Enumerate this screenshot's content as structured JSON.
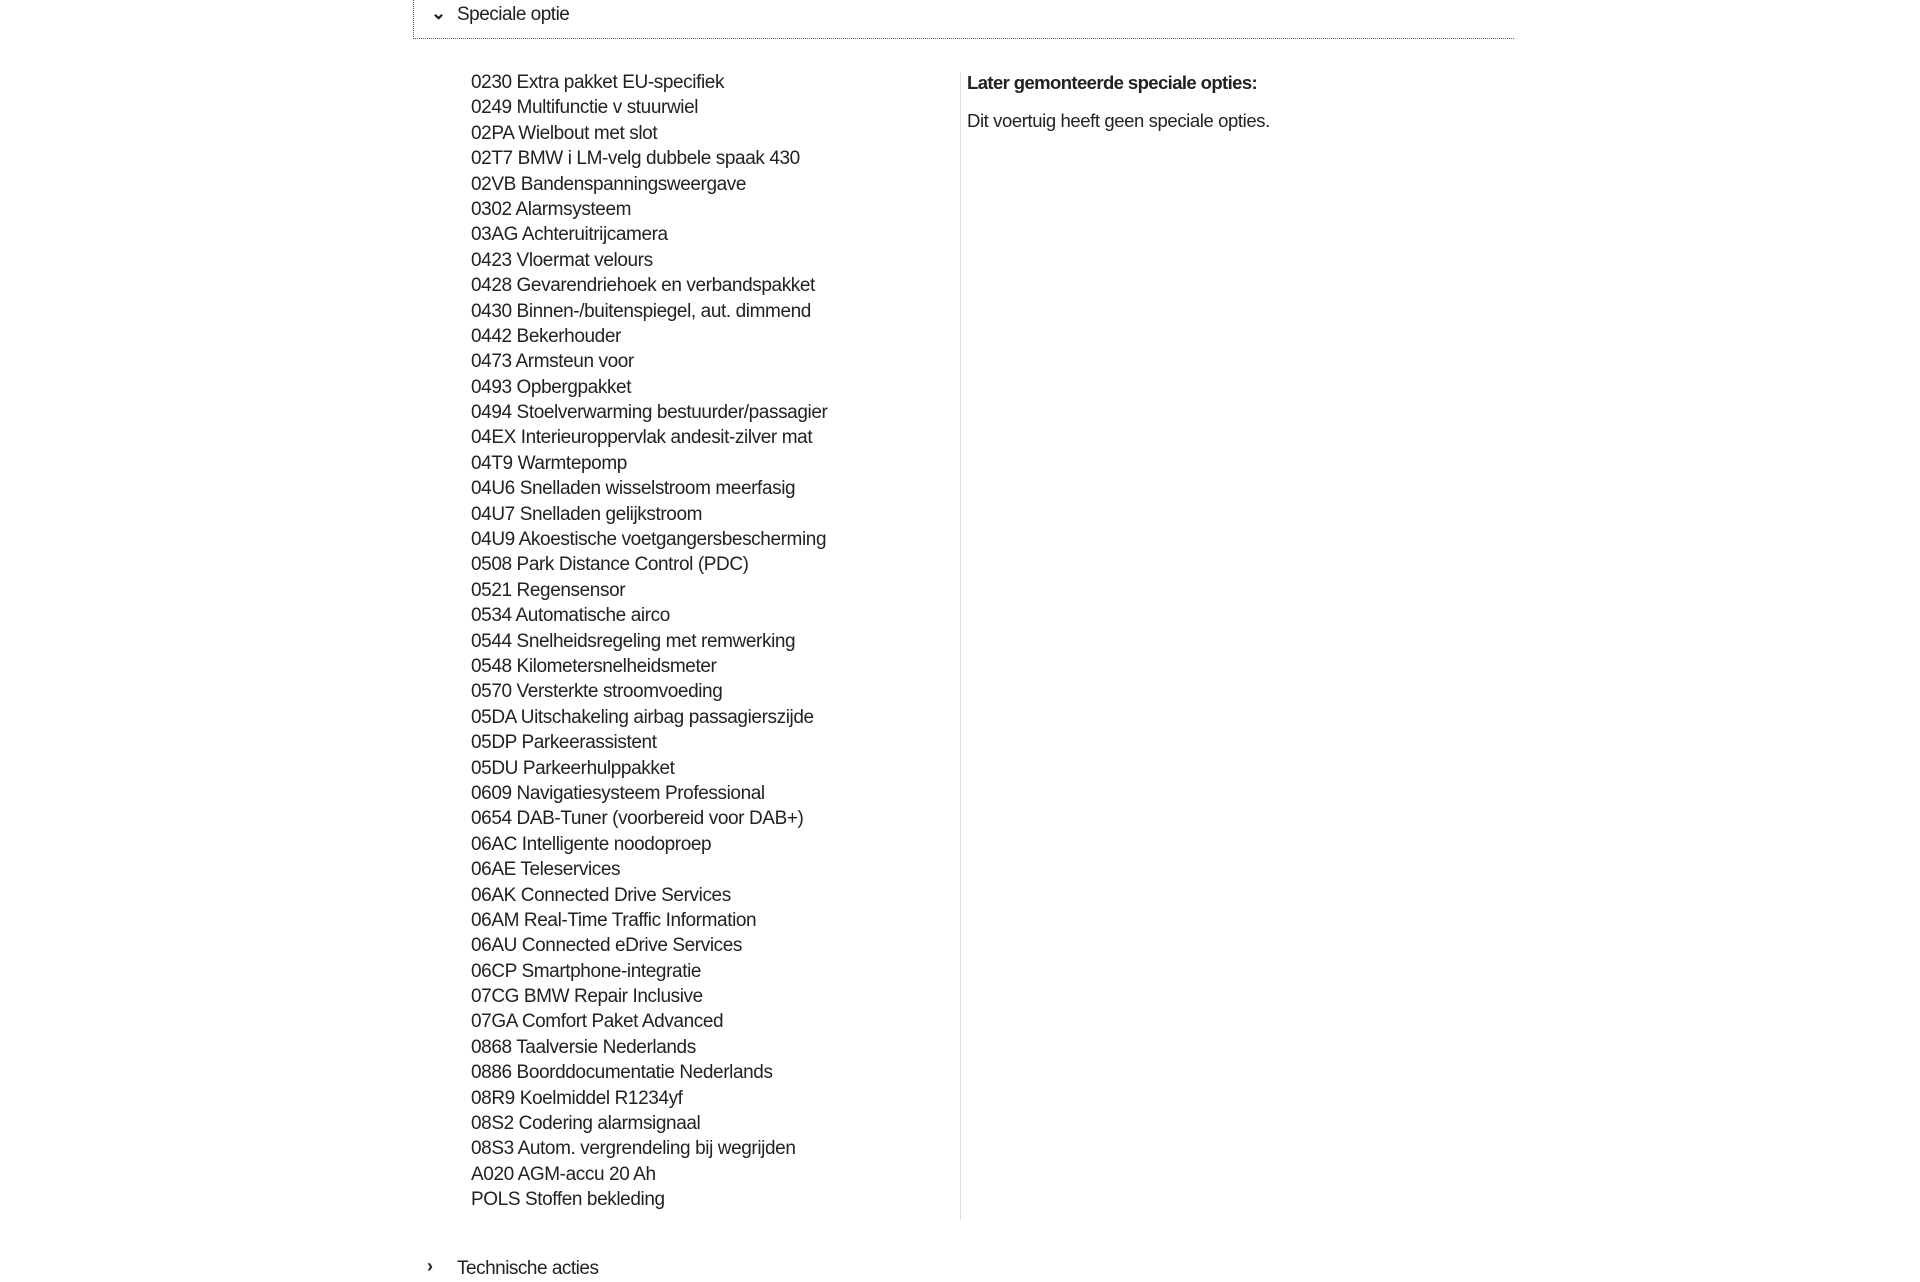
{
  "sections": {
    "speciale_optie": {
      "label": "Speciale optie",
      "expanded": true,
      "icon": "chevron-down-icon"
    },
    "technische_acties": {
      "label": "Technische acties",
      "expanded": false,
      "icon": "chevron-right-icon"
    }
  },
  "options": [
    "0230 Extra pakket EU-specifiek",
    "0249 Multifunctie v stuurwiel",
    "02PA Wielbout met slot",
    "02T7 BMW i LM-velg dubbele spaak 430",
    "02VB Bandenspanningsweergave",
    "0302 Alarmsysteem",
    "03AG Achteruitrijcamera",
    "0423 Vloermat velours",
    "0428 Gevarendriehoek en verbandspakket",
    "0430 Binnen-/buitenspiegel, aut. dimmend",
    "0442 Bekerhouder",
    "0473 Armsteun voor",
    "0493 Opbergpakket",
    "0494 Stoelverwarming bestuurder/passagier",
    "04EX Interieuroppervlak andesit-zilver mat",
    "04T9 Warmtepomp",
    "04U6 Snelladen wisselstroom meerfasig",
    "04U7 Snelladen gelijkstroom",
    "04U9 Akoestische voetgangersbescherming",
    "0508 Park Distance Control (PDC)",
    "0521 Regensensor",
    "0534 Automatische airco",
    "0544 Snelheidsregeling met remwerking",
    "0548 Kilometersnelheidsmeter",
    "0570 Versterkte stroomvoeding",
    "05DA Uitschakeling airbag passagierszijde",
    "05DP Parkeerassistent",
    "05DU Parkeerhulppakket",
    "0609 Navigatiesysteem Professional",
    "0654 DAB-Tuner (voorbereid voor DAB+)",
    "06AC Intelligente noodoproep",
    "06AE Teleservices",
    "06AK Connected Drive Services",
    "06AM Real-Time Traffic Information",
    "06AU Connected eDrive Services",
    "06CP Smartphone-integratie",
    "07CG BMW Repair Inclusive",
    "07GA Comfort Paket Advanced",
    "0868 Taalversie Nederlands",
    "0886 Boorddocumentatie Nederlands",
    "08R9 Koelmiddel R1234yf",
    "08S2 Codering alarmsignaal",
    "08S3 Autom. vergrendeling bij wegrijden",
    "A020 AGM-accu 20 Ah",
    "POLS Stoffen bekleding"
  ],
  "retrofitted": {
    "heading": "Later gemonteerde speciale opties:",
    "message": "Dit voertuig heeft geen speciale opties."
  }
}
